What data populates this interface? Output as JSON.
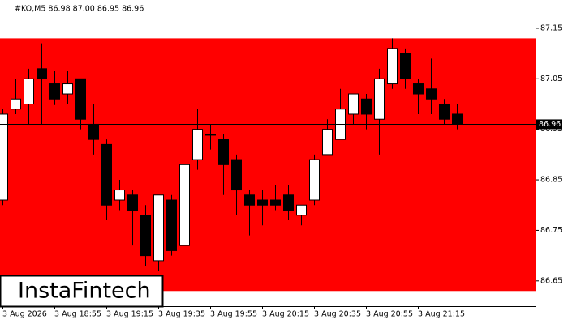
{
  "chart_data": {
    "type": "candlestick",
    "header": "#KO,M5  86.98 87.00 86.95 86.96",
    "brand": "InstaFintech",
    "categories": [
      "3 Aug 2026",
      null,
      null,
      null,
      "3 Aug 18:55",
      null,
      null,
      null,
      "3 Aug 19:15",
      null,
      null,
      null,
      "3 Aug 19:35",
      null,
      null,
      null,
      "3 Aug 19:55",
      null,
      null,
      null,
      "3 Aug 20:15",
      null,
      null,
      null,
      "3 Aug 20:35",
      null,
      null,
      null,
      "3 Aug 20:55",
      null,
      null,
      null,
      "3 Aug 21:15",
      null,
      null,
      null
    ],
    "open": [
      86.81,
      86.99,
      87.0,
      87.07,
      87.04,
      87.02,
      87.05,
      86.96,
      86.92,
      86.81,
      86.82,
      86.78,
      86.69,
      86.81,
      86.72,
      86.89,
      86.94,
      86.93,
      86.89,
      86.82,
      86.81,
      86.81,
      86.82,
      86.78,
      86.81,
      86.9,
      86.93,
      86.98,
      87.01,
      86.97,
      87.04,
      87.1,
      87.04,
      87.03,
      87.0,
      86.98
    ],
    "high": [
      86.99,
      87.05,
      87.07,
      87.12,
      87.065,
      87.065,
      87.05,
      87.0,
      86.93,
      86.85,
      86.83,
      86.8,
      86.82,
      86.82,
      86.88,
      86.99,
      86.96,
      86.94,
      86.9,
      86.83,
      86.83,
      86.84,
      86.84,
      86.8,
      86.9,
      86.97,
      87.03,
      87.02,
      87.02,
      87.07,
      87.13,
      87.11,
      87.05,
      87.09,
      87.01,
      87.0
    ],
    "low": [
      86.8,
      86.98,
      86.96,
      86.96,
      86.998,
      87.0,
      86.95,
      86.9,
      86.77,
      86.79,
      86.72,
      86.68,
      86.67,
      86.7,
      86.72,
      86.87,
      86.91,
      86.82,
      86.78,
      86.74,
      86.76,
      86.79,
      86.77,
      86.76,
      86.8,
      86.9,
      86.93,
      86.96,
      86.95,
      86.9,
      87.03,
      87.03,
      86.98,
      86.98,
      86.96,
      86.95
    ],
    "close": [
      86.98,
      87.01,
      87.05,
      87.05,
      87.01,
      87.04,
      86.97,
      86.93,
      86.8,
      86.83,
      86.79,
      86.7,
      86.82,
      86.71,
      86.88,
      86.95,
      86.94,
      86.88,
      86.83,
      86.8,
      86.8,
      86.8,
      86.79,
      86.8,
      86.89,
      86.95,
      86.99,
      87.02,
      86.98,
      87.05,
      87.11,
      87.05,
      87.02,
      87.01,
      86.97,
      86.96
    ],
    "up_color": "#ffffff",
    "down_color": "#000000",
    "zone": {
      "top": 87.13,
      "bottom": 86.63,
      "color": "#ff0000"
    },
    "last_price": 86.96,
    "ylim": [
      86.6,
      87.206
    ],
    "yticks": [
      86.65,
      86.75,
      86.85,
      86.95,
      87.05,
      87.15
    ]
  }
}
